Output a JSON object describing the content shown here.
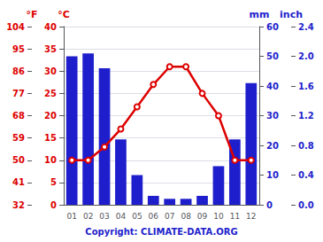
{
  "chart_data": {
    "type": "bar",
    "categories": [
      "01",
      "02",
      "03",
      "04",
      "05",
      "06",
      "07",
      "08",
      "09",
      "10",
      "11",
      "12"
    ],
    "series": [
      {
        "type": "bar",
        "color": "#1e1ecc",
        "axis": "y2",
        "values": [
          50,
          51,
          46,
          22,
          10,
          3,
          2,
          2,
          3,
          13,
          22,
          41
        ]
      },
      {
        "type": "line",
        "color": "#dd0000",
        "axis": "y",
        "values": [
          10,
          10,
          13,
          17,
          22,
          27,
          31,
          31,
          25,
          20,
          10,
          10
        ]
      }
    ],
    "ylabel": "°C",
    "ylim": [
      0,
      40
    ],
    "yticks": [
      0,
      5,
      10,
      15,
      20,
      25,
      30,
      35,
      40
    ],
    "y3label": "°F",
    "y3lim": [
      0,
      40
    ],
    "y3ticks": [
      {
        "value": 0,
        "label": "32"
      },
      {
        "value": 5,
        "label": "41"
      },
      {
        "value": 10,
        "label": "50"
      },
      {
        "value": 15,
        "label": "59"
      },
      {
        "value": 20,
        "label": "68"
      },
      {
        "value": 25,
        "label": "77"
      },
      {
        "value": 30,
        "label": "86"
      },
      {
        "value": 35,
        "label": "95"
      },
      {
        "value": 40,
        "label": "104"
      }
    ],
    "y2label": "mm",
    "y2lim": [
      0,
      60
    ],
    "y2ticks": [
      0,
      10,
      20,
      30,
      40,
      50,
      60
    ],
    "y4label": "inch",
    "y4lim": [
      0,
      60
    ],
    "y4ticks": [
      {
        "value": 0,
        "label": "0.0"
      },
      {
        "value": 10,
        "label": "0.4"
      },
      {
        "value": 20,
        "label": "0.8"
      },
      {
        "value": 30,
        "label": "1.2"
      },
      {
        "value": 40,
        "label": "1.6"
      },
      {
        "value": 50,
        "label": "2.0"
      },
      {
        "value": 60,
        "label": "2.4"
      }
    ],
    "grid": true,
    "annotations": [
      "Copyright: CLIMATE-DATA.ORG"
    ]
  }
}
